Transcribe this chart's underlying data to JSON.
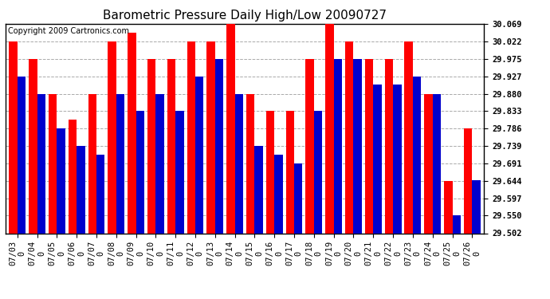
{
  "title": "Barometric Pressure Daily High/Low 20090727",
  "copyright": "Copyright 2009 Cartronics.com",
  "dates": [
    "07/03\n0",
    "07/04\n0",
    "07/05\n0",
    "07/06\n0",
    "07/07\n0",
    "07/08\n0",
    "07/09\n0",
    "07/10\n0",
    "07/11\n0",
    "07/12\n0",
    "07/13\n0",
    "07/14\n0",
    "07/15\n0",
    "07/16\n0",
    "07/17\n0",
    "07/18\n0",
    "07/19\n0",
    "07/20\n0",
    "07/21\n0",
    "07/22\n0",
    "07/23\n0",
    "07/24\n0",
    "07/25\n0",
    "07/26\n0"
  ],
  "highs": [
    30.022,
    29.975,
    29.88,
    29.81,
    29.88,
    30.022,
    30.046,
    29.975,
    29.975,
    30.022,
    30.022,
    30.069,
    29.88,
    29.833,
    29.833,
    29.975,
    30.069,
    30.022,
    29.975,
    29.975,
    30.022,
    29.88,
    29.644,
    29.786
  ],
  "lows": [
    29.927,
    29.88,
    29.786,
    29.739,
    29.715,
    29.88,
    29.833,
    29.88,
    29.833,
    29.927,
    29.975,
    29.88,
    29.739,
    29.715,
    29.691,
    29.833,
    29.975,
    29.975,
    29.904,
    29.904,
    29.927,
    29.88,
    29.55,
    29.645
  ],
  "high_color": "#ff0000",
  "low_color": "#0000cc",
  "background_color": "#ffffff",
  "grid_color": "#aaaaaa",
  "ymin": 29.502,
  "ymax": 30.069,
  "yticks": [
    29.502,
    29.55,
    29.597,
    29.644,
    29.691,
    29.739,
    29.786,
    29.833,
    29.88,
    29.927,
    29.975,
    30.022,
    30.069
  ],
  "title_fontsize": 11,
  "tick_fontsize": 7.5,
  "copyright_fontsize": 7,
  "bar_width": 0.42
}
